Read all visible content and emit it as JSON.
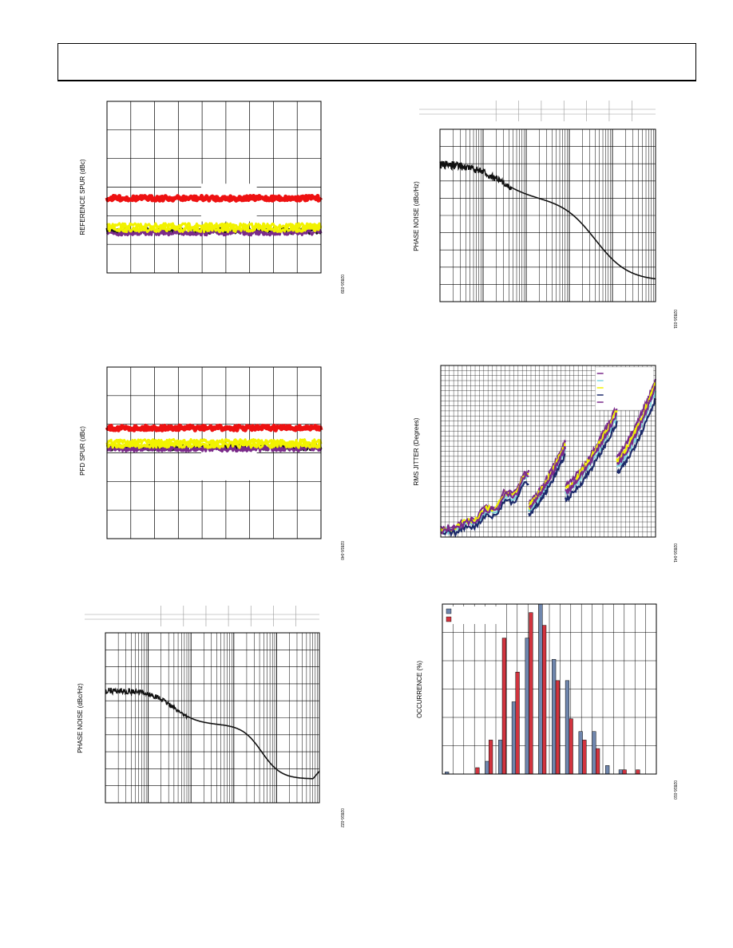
{
  "page": {
    "header": ""
  },
  "figures": [
    {
      "ylabel": "REFERENCE SPUR (dBc)",
      "code": "02816-039"
    },
    {
      "ylabel": "PFD SPUR (dBc)",
      "code": "02816-040"
    },
    {
      "ylabel": "PHASE NOISE (dBc/Hz)",
      "code": "02816-022"
    },
    {
      "ylabel": "PHASE NOISE (dBc/Hz)",
      "code": "02816-031"
    },
    {
      "ylabel": "RMS JITTER (Degrees)",
      "code": "02816-041"
    },
    {
      "ylabel": "OCCURRENCE (%)",
      "code": "02816-010"
    }
  ],
  "colors": {
    "red": "#ee1111",
    "yellow": "#f2f200",
    "purple": "#7a2a8a",
    "black": "#111111",
    "cyan": "#7fd6e0",
    "navy": "#1c2a6a",
    "bar_blue": "#6f86ad",
    "bar_red": "#d2343f"
  },
  "chart_data": [
    {
      "type": "line",
      "series": [
        {
          "color": "red",
          "level": 0.565
        },
        {
          "color": "yellow",
          "level": 0.745
        },
        {
          "color": "purple",
          "level": 0.765
        },
        {
          "color": "black",
          "level": 0.755
        }
      ],
      "x_divisions": 9,
      "y_divisions": 6,
      "grid": true
    },
    {
      "type": "line",
      "series": [
        {
          "color": "red",
          "level": 0.355
        },
        {
          "color": "yellow",
          "level": 0.455
        },
        {
          "color": "purple",
          "level": 0.475
        },
        {
          "color": "black",
          "level": 0.468
        }
      ],
      "x_divisions": 9,
      "y_divisions": 6,
      "grid": true
    },
    {
      "type": "line",
      "xscale": "log",
      "decades": 5,
      "series": [
        {
          "color": "black",
          "shape": "phase_noise_1"
        }
      ],
      "y_divisions": 10,
      "grid": true
    },
    {
      "type": "line",
      "xscale": "log",
      "decades": 5,
      "series": [
        {
          "color": "black",
          "shape": "phase_noise_2"
        }
      ],
      "y_divisions": 10,
      "grid": true
    },
    {
      "type": "line",
      "xscale": "log",
      "decades": 5,
      "series": [
        {
          "color": "purple"
        },
        {
          "color": "cyan"
        },
        {
          "color": "yellow"
        },
        {
          "color": "navy"
        },
        {
          "color": "purple"
        }
      ],
      "legend_position": "top-right",
      "grid": true
    },
    {
      "type": "bar",
      "series": [
        {
          "color": "bar_blue",
          "values": [
            0.5,
            0,
            0,
            3,
            8,
            17,
            32,
            40,
            27,
            22,
            10,
            10,
            2,
            1,
            0,
            0
          ]
        },
        {
          "color": "bar_red",
          "values": [
            0,
            0,
            1.5,
            8,
            32,
            24,
            38,
            35,
            22,
            13,
            8,
            6,
            0,
            1,
            1,
            0
          ]
        }
      ],
      "ymax": 40,
      "legend_position": "top-left",
      "grid": true
    }
  ]
}
